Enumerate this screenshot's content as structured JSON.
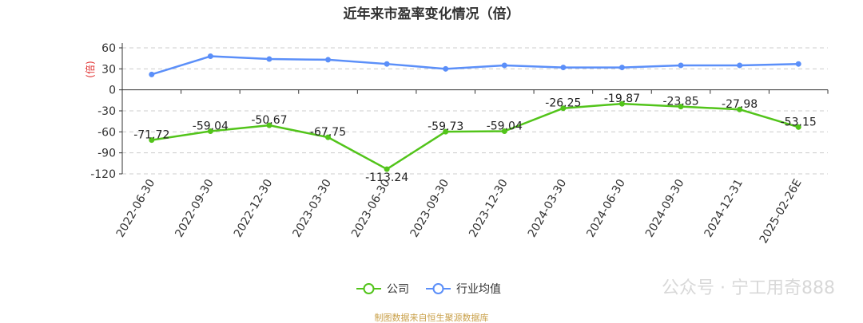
{
  "chart_data": {
    "type": "line",
    "title": "近年来市盈率变化情况（倍）",
    "ylabel": "(倍)",
    "xlabel": "",
    "categories": [
      "2022-06-30",
      "2022-09-30",
      "2022-12-30",
      "2023-03-30",
      "2023-06-30",
      "2023-09-30",
      "2023-12-30",
      "2024-03-30",
      "2024-06-30",
      "2024-09-30",
      "2024-12-31",
      "2025-02-26E"
    ],
    "yticks": [
      60,
      30,
      0,
      -30,
      -60,
      -90,
      -120
    ],
    "ylim": [
      -120,
      60
    ],
    "grid": true,
    "legend_position": "bottom",
    "series": [
      {
        "name": "公司",
        "color": "#52c41a",
        "values": [
          -71.72,
          -59.04,
          -50.67,
          -67.75,
          -113.24,
          -59.73,
          -59.04,
          -26.25,
          -19.87,
          -23.85,
          -27.98,
          -53.15
        ],
        "labels": [
          "-71.72",
          "-59.04",
          "-50.67",
          "-67.75",
          "-113.24",
          "-59.73",
          "-59.04",
          "-26.25",
          "-19.87",
          "-23.85",
          "-27.98",
          "-53.15"
        ]
      },
      {
        "name": "行业均值",
        "color": "#5b8ff9",
        "values": [
          22,
          48,
          44,
          43,
          37,
          30,
          35,
          32,
          32,
          35,
          35,
          37
        ]
      }
    ]
  },
  "source": "制图数据来自恒生聚源数据库",
  "watermark": "公众号 · 宁工用奇888"
}
